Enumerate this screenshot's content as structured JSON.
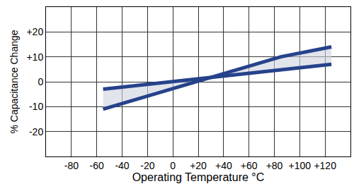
{
  "chart_data": {
    "type": "line",
    "x_label": "Operating Temperature °C",
    "y_label": "% Capacitance Change",
    "xlim": [
      -100,
      140
    ],
    "xticks": [
      -80,
      -60,
      -40,
      -20,
      0,
      {
        "value": 20,
        "label": "+20"
      },
      {
        "value": 40,
        "label": "+40"
      },
      {
        "value": 60,
        "label": "+60"
      },
      {
        "value": 80,
        "label": "+80"
      },
      {
        "value": 100,
        "label": "+100"
      },
      {
        "value": 120,
        "label": "+120"
      }
    ],
    "ylim": [
      -30,
      30
    ],
    "yticks": [
      -20,
      -10,
      0,
      {
        "value": 10,
        "label": "+10"
      },
      {
        "value": 20,
        "label": "+20"
      }
    ],
    "grid": true,
    "series": [
      {
        "color": "#26428b",
        "x": [
          -55,
          85,
          125
        ],
        "values": [
          -11,
          10,
          14
        ]
      },
      {
        "color": "#26428b",
        "x": [
          -55,
          125
        ],
        "values": [
          -3,
          7
        ]
      }
    ]
  }
}
